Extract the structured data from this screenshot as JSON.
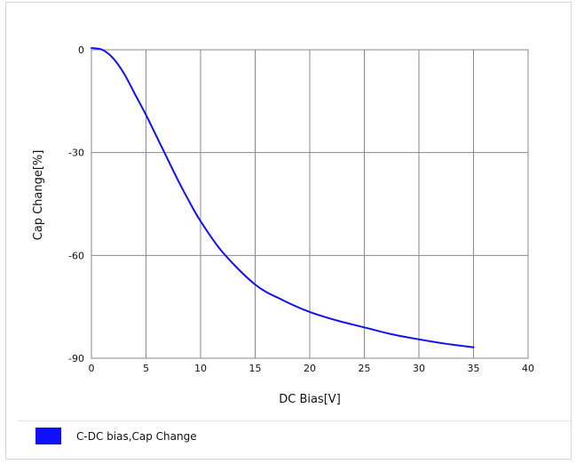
{
  "chart_data": {
    "type": "line",
    "title": "",
    "xlabel": "DC Bias[V]",
    "ylabel": "Cap Change[%]",
    "xlim": [
      0,
      40
    ],
    "ylim": [
      -90,
      0
    ],
    "x_ticks": [
      0,
      5,
      10,
      15,
      20,
      25,
      30,
      35,
      40
    ],
    "y_ticks": [
      0,
      -30,
      -60,
      -90
    ],
    "grid": true,
    "legend_position": "bottom",
    "series": [
      {
        "name": "C-DC bias,Cap Change",
        "color": "#1010ff",
        "x": [
          0,
          1,
          2,
          3,
          4,
          5,
          6,
          7,
          8,
          9,
          10,
          12,
          15,
          17.5,
          20,
          22.5,
          25,
          27.5,
          30,
          32.5,
          35
        ],
        "y": [
          0.5,
          0,
          -2.5,
          -7,
          -13,
          -19,
          -25.5,
          -32,
          -38.5,
          -44.5,
          -50,
          -59,
          -68.5,
          -73,
          -76.5,
          -79,
          -81,
          -83,
          -84.5,
          -85.8,
          -86.8
        ]
      }
    ]
  }
}
